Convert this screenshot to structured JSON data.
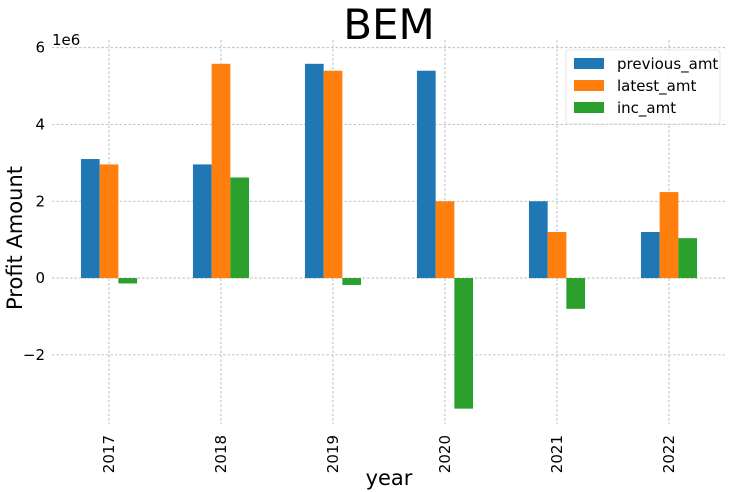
{
  "chart_data": {
    "type": "bar",
    "title": "BEM",
    "xlabel": "year",
    "ylabel": "Profit Amount",
    "y_offset_label": "1e6",
    "categories": [
      "2017",
      "2018",
      "2019",
      "2020",
      "2021",
      "2022"
    ],
    "series": [
      {
        "name": "previous_amt",
        "color": "#1f77b4",
        "values": [
          3100000,
          2960000,
          5580000,
          5400000,
          2000000,
          1200000
        ]
      },
      {
        "name": "latest_amt",
        "color": "#ff7f0e",
        "values": [
          2960000,
          5580000,
          5400000,
          2000000,
          1200000,
          2240000
        ]
      },
      {
        "name": "inc_amt",
        "color": "#2ca02c",
        "values": [
          -140000,
          2620000,
          -180000,
          -3400000,
          -800000,
          1040000
        ]
      }
    ],
    "ylim": [
      -3800000,
      6200000
    ],
    "yticks": [
      -2000000,
      0,
      2000000,
      4000000,
      6000000
    ],
    "ytick_labels": [
      "−2",
      "0",
      "2",
      "4",
      "6"
    ],
    "grid": true,
    "legend_position": "upper right"
  }
}
